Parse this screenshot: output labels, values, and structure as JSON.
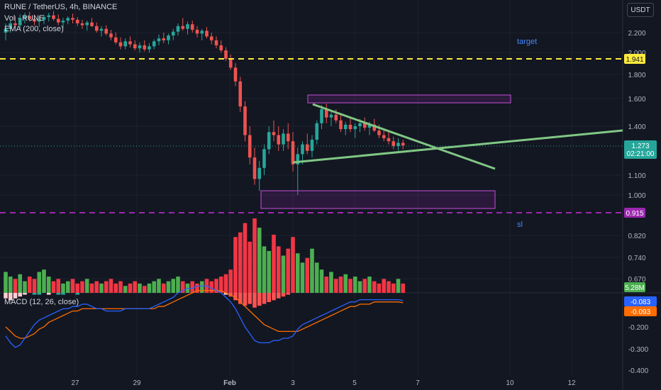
{
  "header": {
    "symbol_line": "RUNE / TetherUS, 4h, BINANCE",
    "vol_line": "Vol · RUNE",
    "ema_line": "EMA (200, close)",
    "macd_line": "MACD (12, 26, close)",
    "currency": "USDT"
  },
  "colors": {
    "background": "#131722",
    "up": "#26a69a",
    "down": "#ef5350",
    "vol_up": "#4caf50",
    "vol_down": "#f23645",
    "macd_line": "#2962ff",
    "signal_line": "#ff6d00",
    "target_line": "#ffeb3b",
    "sl_line": "#9c27b0",
    "trend_line": "#81c784"
  },
  "chart_data": {
    "type": "candlestick",
    "price_axis": {
      "ticks": [
        "2.200",
        "2.000",
        "1.800",
        "1.600",
        "1.400",
        "1.100",
        "1.000",
        "0.820",
        "0.740",
        "0.670"
      ],
      "ylim": [
        0.62,
        2.45
      ]
    },
    "macd_axis": {
      "ticks": [
        "-0.200",
        "-0.300",
        "-0.400"
      ],
      "ylim": [
        -0.42,
        0.0
      ]
    },
    "x_axis": {
      "ticks": [
        "27",
        "29",
        "Feb",
        "3",
        "5",
        "7",
        "10",
        "12"
      ]
    },
    "price_labels": {
      "target_value": "1.941",
      "sl_value": "0.915",
      "current_price": "1.273",
      "countdown": "02:21:00",
      "volume": "5.28M",
      "macd": "-0.083",
      "signal": "-0.093"
    },
    "annotations": {
      "target": "target",
      "sl": "sl"
    },
    "candles": [
      [
        2.2,
        2.3,
        2.12,
        2.24
      ],
      [
        2.24,
        2.34,
        2.2,
        2.3
      ],
      [
        2.3,
        2.38,
        2.25,
        2.28
      ],
      [
        2.28,
        2.4,
        2.24,
        2.36
      ],
      [
        2.36,
        2.42,
        2.3,
        2.38
      ],
      [
        2.38,
        2.43,
        2.32,
        2.35
      ],
      [
        2.35,
        2.4,
        2.28,
        2.32
      ],
      [
        2.32,
        2.38,
        2.26,
        2.34
      ],
      [
        2.34,
        2.4,
        2.29,
        2.37
      ],
      [
        2.37,
        2.42,
        2.32,
        2.39
      ],
      [
        2.39,
        2.44,
        2.33,
        2.35
      ],
      [
        2.35,
        2.4,
        2.28,
        2.31
      ],
      [
        2.31,
        2.36,
        2.25,
        2.33
      ],
      [
        2.33,
        2.38,
        2.29,
        2.36
      ],
      [
        2.36,
        2.41,
        2.3,
        2.34
      ],
      [
        2.34,
        2.37,
        2.27,
        2.3
      ],
      [
        2.3,
        2.34,
        2.24,
        2.28
      ],
      [
        2.28,
        2.33,
        2.22,
        2.31
      ],
      [
        2.31,
        2.36,
        2.26,
        2.27
      ],
      [
        2.27,
        2.31,
        2.2,
        2.22
      ],
      [
        2.22,
        2.27,
        2.16,
        2.24
      ],
      [
        2.24,
        2.28,
        2.17,
        2.19
      ],
      [
        2.19,
        2.23,
        2.12,
        2.15
      ],
      [
        2.15,
        2.2,
        2.08,
        2.1
      ],
      [
        2.1,
        2.15,
        2.03,
        2.06
      ],
      [
        2.06,
        2.14,
        2.03,
        2.11
      ],
      [
        2.11,
        2.16,
        2.05,
        2.08
      ],
      [
        2.08,
        2.12,
        2.02,
        2.04
      ],
      [
        2.04,
        2.1,
        2.0,
        2.07
      ],
      [
        2.07,
        2.12,
        2.01,
        2.03
      ],
      [
        2.03,
        2.09,
        2.0,
        2.06
      ],
      [
        2.06,
        2.13,
        2.03,
        2.11
      ],
      [
        2.11,
        2.18,
        2.07,
        2.14
      ],
      [
        2.14,
        2.2,
        2.09,
        2.12
      ],
      [
        2.12,
        2.19,
        2.08,
        2.17
      ],
      [
        2.17,
        2.24,
        2.12,
        2.21
      ],
      [
        2.21,
        2.3,
        2.17,
        2.27
      ],
      [
        2.27,
        2.36,
        2.22,
        2.24
      ],
      [
        2.24,
        2.32,
        2.18,
        2.29
      ],
      [
        2.29,
        2.33,
        2.2,
        2.23
      ],
      [
        2.23,
        2.27,
        2.15,
        2.19
      ],
      [
        2.19,
        2.24,
        2.12,
        2.22
      ],
      [
        2.22,
        2.26,
        2.14,
        2.16
      ],
      [
        2.16,
        2.2,
        2.08,
        2.12
      ],
      [
        2.12,
        2.16,
        2.04,
        2.07
      ],
      [
        2.07,
        2.12,
        2.0,
        2.02
      ],
      [
        2.02,
        2.05,
        1.92,
        1.94
      ],
      [
        1.94,
        1.98,
        1.84,
        1.86
      ],
      [
        1.86,
        1.9,
        1.7,
        1.74
      ],
      [
        1.74,
        1.78,
        1.5,
        1.54
      ],
      [
        1.54,
        1.58,
        1.3,
        1.34
      ],
      [
        1.34,
        1.4,
        1.16,
        1.2
      ],
      [
        1.2,
        1.26,
        1.05,
        1.08
      ],
      [
        1.08,
        1.18,
        1.02,
        1.14
      ],
      [
        1.14,
        1.28,
        1.1,
        1.25
      ],
      [
        1.25,
        1.4,
        1.22,
        1.36
      ],
      [
        1.36,
        1.44,
        1.3,
        1.34
      ],
      [
        1.34,
        1.4,
        1.24,
        1.28
      ],
      [
        1.28,
        1.38,
        1.24,
        1.35
      ],
      [
        1.35,
        1.42,
        1.25,
        1.3
      ],
      [
        1.3,
        1.36,
        1.12,
        1.16
      ],
      [
        1.16,
        1.26,
        1.0,
        1.22
      ],
      [
        1.22,
        1.3,
        1.16,
        1.28
      ],
      [
        1.28,
        1.35,
        1.22,
        1.24
      ],
      [
        1.24,
        1.34,
        1.2,
        1.31
      ],
      [
        1.31,
        1.44,
        1.28,
        1.42
      ],
      [
        1.42,
        1.55,
        1.38,
        1.52
      ],
      [
        1.52,
        1.56,
        1.42,
        1.46
      ],
      [
        1.46,
        1.5,
        1.4,
        1.48
      ],
      [
        1.48,
        1.52,
        1.42,
        1.44
      ],
      [
        1.44,
        1.48,
        1.36,
        1.38
      ],
      [
        1.38,
        1.43,
        1.34,
        1.41
      ],
      [
        1.41,
        1.46,
        1.36,
        1.38
      ],
      [
        1.38,
        1.42,
        1.32,
        1.4
      ],
      [
        1.4,
        1.45,
        1.36,
        1.42
      ],
      [
        1.42,
        1.46,
        1.37,
        1.39
      ],
      [
        1.39,
        1.43,
        1.34,
        1.41
      ],
      [
        1.41,
        1.45,
        1.36,
        1.37
      ],
      [
        1.37,
        1.41,
        1.32,
        1.34
      ],
      [
        1.34,
        1.38,
        1.3,
        1.32
      ],
      [
        1.32,
        1.36,
        1.28,
        1.3
      ],
      [
        1.3,
        1.33,
        1.25,
        1.27
      ],
      [
        1.27,
        1.32,
        1.24,
        1.29
      ],
      [
        1.29,
        1.31,
        1.25,
        1.273
      ]
    ],
    "volume": [
      0.9,
      0.7,
      0.6,
      0.8,
      0.5,
      0.7,
      0.6,
      0.9,
      1.0,
      0.7,
      0.5,
      0.6,
      0.4,
      0.5,
      0.6,
      0.4,
      0.5,
      0.6,
      0.4,
      0.5,
      0.4,
      0.5,
      0.6,
      0.4,
      0.5,
      0.3,
      0.4,
      0.5,
      0.4,
      0.3,
      0.4,
      0.5,
      0.6,
      0.4,
      0.5,
      0.6,
      0.7,
      0.5,
      0.4,
      0.5,
      0.4,
      0.5,
      0.6,
      0.5,
      0.6,
      0.7,
      0.8,
      1.0,
      2.4,
      2.6,
      3.0,
      2.2,
      3.2,
      2.8,
      2.0,
      1.8,
      2.5,
      2.0,
      1.6,
      1.9,
      2.4,
      1.7,
      1.3,
      1.5,
      1.9,
      1.3,
      1.0,
      0.7,
      0.9,
      0.6,
      0.7,
      0.8,
      0.6,
      0.7,
      0.5,
      0.6,
      0.7,
      0.5,
      0.4,
      0.6,
      0.5,
      0.4,
      0.6,
      0.4
    ],
    "macd_hist": [
      -0.03,
      -0.04,
      -0.03,
      -0.02,
      -0.01,
      0.0,
      0.01,
      0.01,
      0.0,
      -0.01,
      0.0,
      0.01,
      0.01,
      0.0,
      0.0,
      0.01,
      0.0,
      0.0,
      0.0,
      0.0,
      0.0,
      0.0,
      0.0,
      0.0,
      0.0,
      0.0,
      0.0,
      0.0,
      0.0,
      0.0,
      0.0,
      0.0,
      0.0,
      0.0,
      0.0,
      0.0,
      0.0,
      0.0,
      0.0,
      0.0,
      0.0,
      0.0,
      0.0,
      0.0,
      0.0,
      0.0,
      -0.01,
      -0.02,
      -0.04,
      -0.06,
      -0.07,
      -0.06,
      -0.08,
      -0.07,
      -0.06,
      -0.05,
      -0.04,
      -0.03,
      -0.02,
      -0.01,
      0.0,
      0.0,
      0.0,
      0.0,
      0.0,
      0.0,
      0.0,
      0.0,
      0.0,
      0.0,
      0.0,
      0.0,
      0.0,
      0.0,
      0.0,
      0.0,
      0.0,
      0.0,
      0.0,
      0.0,
      0.0,
      0.0,
      0.0,
      0.0
    ],
    "macd": [
      -0.24,
      -0.27,
      -0.29,
      -0.28,
      -0.25,
      -0.22,
      -0.19,
      -0.17,
      -0.16,
      -0.15,
      -0.14,
      -0.13,
      -0.12,
      -0.12,
      -0.11,
      -0.11,
      -0.1,
      -0.1,
      -0.11,
      -0.12,
      -0.12,
      -0.13,
      -0.13,
      -0.13,
      -0.13,
      -0.12,
      -0.12,
      -0.12,
      -0.12,
      -0.12,
      -0.12,
      -0.11,
      -0.1,
      -0.09,
      -0.08,
      -0.07,
      -0.05,
      -0.04,
      -0.03,
      -0.03,
      -0.02,
      -0.02,
      -0.02,
      -0.03,
      -0.04,
      -0.05,
      -0.07,
      -0.09,
      -0.12,
      -0.16,
      -0.2,
      -0.23,
      -0.26,
      -0.27,
      -0.27,
      -0.27,
      -0.26,
      -0.26,
      -0.25,
      -0.25,
      -0.24,
      -0.21,
      -0.19,
      -0.18,
      -0.17,
      -0.16,
      -0.15,
      -0.14,
      -0.13,
      -0.12,
      -0.11,
      -0.1,
      -0.09,
      -0.09,
      -0.08,
      -0.08,
      -0.08,
      -0.08,
      -0.08,
      -0.08,
      -0.08,
      -0.08,
      -0.08,
      -0.083
    ],
    "signal": [
      -0.2,
      -0.22,
      -0.24,
      -0.25,
      -0.25,
      -0.24,
      -0.23,
      -0.21,
      -0.2,
      -0.18,
      -0.17,
      -0.16,
      -0.15,
      -0.14,
      -0.13,
      -0.13,
      -0.12,
      -0.12,
      -0.12,
      -0.12,
      -0.12,
      -0.12,
      -0.12,
      -0.12,
      -0.12,
      -0.12,
      -0.12,
      -0.12,
      -0.12,
      -0.12,
      -0.12,
      -0.12,
      -0.11,
      -0.11,
      -0.1,
      -0.09,
      -0.08,
      -0.07,
      -0.06,
      -0.05,
      -0.04,
      -0.04,
      -0.04,
      -0.04,
      -0.04,
      -0.04,
      -0.05,
      -0.06,
      -0.07,
      -0.09,
      -0.11,
      -0.13,
      -0.15,
      -0.17,
      -0.19,
      -0.2,
      -0.21,
      -0.22,
      -0.22,
      -0.22,
      -0.22,
      -0.22,
      -0.21,
      -0.2,
      -0.19,
      -0.18,
      -0.17,
      -0.16,
      -0.15,
      -0.14,
      -0.13,
      -0.12,
      -0.11,
      -0.11,
      -0.1,
      -0.1,
      -0.1,
      -0.09,
      -0.09,
      -0.09,
      -0.09,
      -0.09,
      -0.09,
      -0.093
    ]
  }
}
